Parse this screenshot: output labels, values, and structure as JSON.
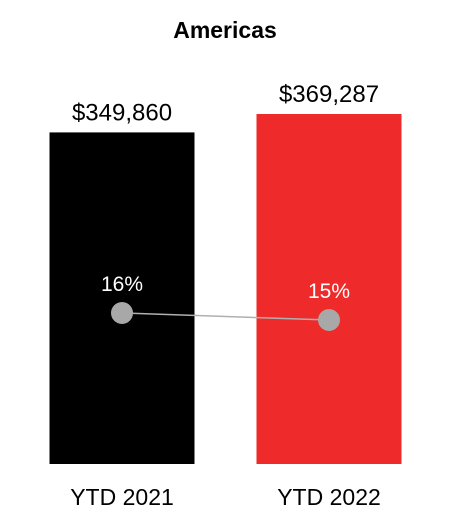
{
  "chart_data": {
    "type": "bar",
    "title": "Americas",
    "categories": [
      "YTD 2021",
      "YTD 2022"
    ],
    "series": [
      {
        "values": [
          349860,
          369287
        ],
        "value_labels": [
          "$349,860",
          "$369,287"
        ]
      },
      {
        "type": "line",
        "values": [
          16,
          15
        ],
        "value_labels": [
          "16%",
          "15%"
        ]
      }
    ],
    "ylim": [
      0,
      369287
    ],
    "grid": false,
    "bar_colors": [
      "#000000",
      "#ee2a2a"
    ],
    "line_color": "#b0b0b0",
    "marker_color": "#a8a8a8"
  }
}
